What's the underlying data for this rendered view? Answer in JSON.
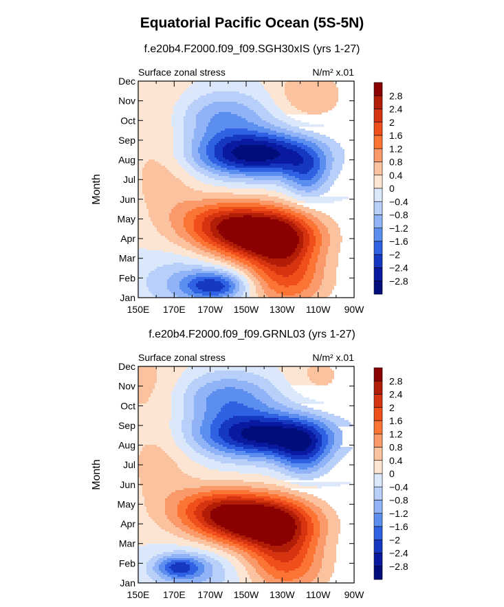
{
  "figure": {
    "title": "Equatorial Pacific Ocean (5S-5N)"
  },
  "chart_data": [
    {
      "type": "heatmap",
      "title": "f.e20b4.F2000.f09_f09.SGH30xIS (yrs 1-27)",
      "subtitle_left": "Surface zonal stress",
      "subtitle_right": "N/m² x.01",
      "xlabel": "",
      "ylabel": "Month",
      "x_ticks": [
        "150E",
        "170E",
        "170W",
        "150W",
        "130W",
        "110W",
        "90W"
      ],
      "y_ticks": [
        "Jan",
        "Feb",
        "Mar",
        "Apr",
        "May",
        "Jun",
        "Jul",
        "Aug",
        "Sep",
        "Oct",
        "Nov",
        "Dec"
      ],
      "colorbar_labels": [
        "2.8",
        "2.4",
        "2",
        "1.6",
        "1.2",
        "0.8",
        "0.4",
        "0",
        "-0.4",
        "-0.8",
        "-1.2",
        "-1.6",
        "-2",
        "-2.4",
        "-2.8"
      ],
      "features": [
        {
          "lon": 216,
          "month": 3.2,
          "value": 3.1,
          "sx": 22,
          "sy": 0.9
        },
        {
          "lon": 196,
          "month": 4.0,
          "value": 1.2,
          "sx": 18,
          "sy": 0.8
        },
        {
          "lon": 230,
          "month": 2.0,
          "value": 1.5,
          "sx": 14,
          "sy": 1.5
        },
        {
          "lon": 215,
          "month": 7.3,
          "value": -3.1,
          "sx": 24,
          "sy": 0.8
        },
        {
          "lon": 244,
          "month": 6.2,
          "value": -1.3,
          "sx": 9,
          "sy": 0.9
        },
        {
          "lon": 196,
          "month": 9.2,
          "value": -1.2,
          "sx": 20,
          "sy": 0.9
        },
        {
          "lon": 193,
          "month": 0.6,
          "value": -1.9,
          "sx": 12,
          "sy": 0.5
        },
        {
          "lon": 176,
          "month": 0.8,
          "value": -0.8,
          "sx": 18,
          "sy": 1.0
        },
        {
          "lon": 165,
          "month": 6.0,
          "value": 0.6,
          "sx": 14,
          "sy": 1.6
        },
        {
          "lon": 160,
          "month": 9.5,
          "value": 0.5,
          "sx": 16,
          "sy": 1.6
        },
        {
          "lon": 245,
          "month": 10.3,
          "value": 0.8,
          "sx": 14,
          "sy": 1.0
        },
        {
          "lon": 238,
          "month": 0.8,
          "value": 0.7,
          "sx": 16,
          "sy": 1.0
        }
      ]
    },
    {
      "type": "heatmap",
      "title": "f.e20b4.F2000.f09_f09.GRNL03 (yrs 1-27)",
      "subtitle_left": "Surface zonal stress",
      "subtitle_right": "N/m² x.01",
      "xlabel": "",
      "ylabel": "Month",
      "x_ticks": [
        "150E",
        "170E",
        "170W",
        "150W",
        "130W",
        "110W",
        "90W"
      ],
      "y_ticks": [
        "Jan",
        "Feb",
        "Mar",
        "Apr",
        "May",
        "Jun",
        "Jul",
        "Aug",
        "Sep",
        "Oct",
        "Nov",
        "Dec"
      ],
      "colorbar_labels": [
        "2.8",
        "2.4",
        "2",
        "1.6",
        "1.2",
        "0.8",
        "0.4",
        "0",
        "-0.4",
        "-0.8",
        "-1.2",
        "-1.6",
        "-2",
        "-2.4",
        "-2.8"
      ],
      "features": [
        {
          "lon": 215,
          "month": 3.1,
          "value": 3.1,
          "sx": 22,
          "sy": 0.9
        },
        {
          "lon": 193,
          "month": 3.8,
          "value": 1.4,
          "sx": 18,
          "sy": 0.8
        },
        {
          "lon": 230,
          "month": 1.8,
          "value": 1.5,
          "sx": 14,
          "sy": 1.4
        },
        {
          "lon": 220,
          "month": 7.5,
          "value": -3.0,
          "sx": 26,
          "sy": 0.8
        },
        {
          "lon": 242,
          "month": 6.6,
          "value": -1.5,
          "sx": 10,
          "sy": 0.9
        },
        {
          "lon": 200,
          "month": 9.4,
          "value": -1.4,
          "sx": 20,
          "sy": 0.9
        },
        {
          "lon": 172,
          "month": 0.8,
          "value": -1.6,
          "sx": 9,
          "sy": 0.4
        },
        {
          "lon": 182,
          "month": 0.6,
          "value": -0.9,
          "sx": 16,
          "sy": 0.9
        },
        {
          "lon": 162,
          "month": 6.2,
          "value": 0.6,
          "sx": 14,
          "sy": 1.8
        },
        {
          "lon": 155,
          "month": 10.2,
          "value": 0.5,
          "sx": 16,
          "sy": 1.4
        },
        {
          "lon": 250,
          "month": 10.5,
          "value": 0.5,
          "sx": 14,
          "sy": 1.0
        },
        {
          "lon": 238,
          "month": 0.7,
          "value": 0.6,
          "sx": 16,
          "sy": 1.0
        }
      ]
    }
  ],
  "colorbar": {
    "colors": [
      "#8b0000",
      "#b11d06",
      "#d63410",
      "#f04f1c",
      "#fb7434",
      "#fa9a6a",
      "#fbc2a0",
      "#fde5d4",
      "#dbe7fb",
      "#b8cffa",
      "#8fb3f6",
      "#5c8ef0",
      "#2f62e2",
      "#1537c2",
      "#0a1aa0",
      "#000d7a"
    ]
  }
}
